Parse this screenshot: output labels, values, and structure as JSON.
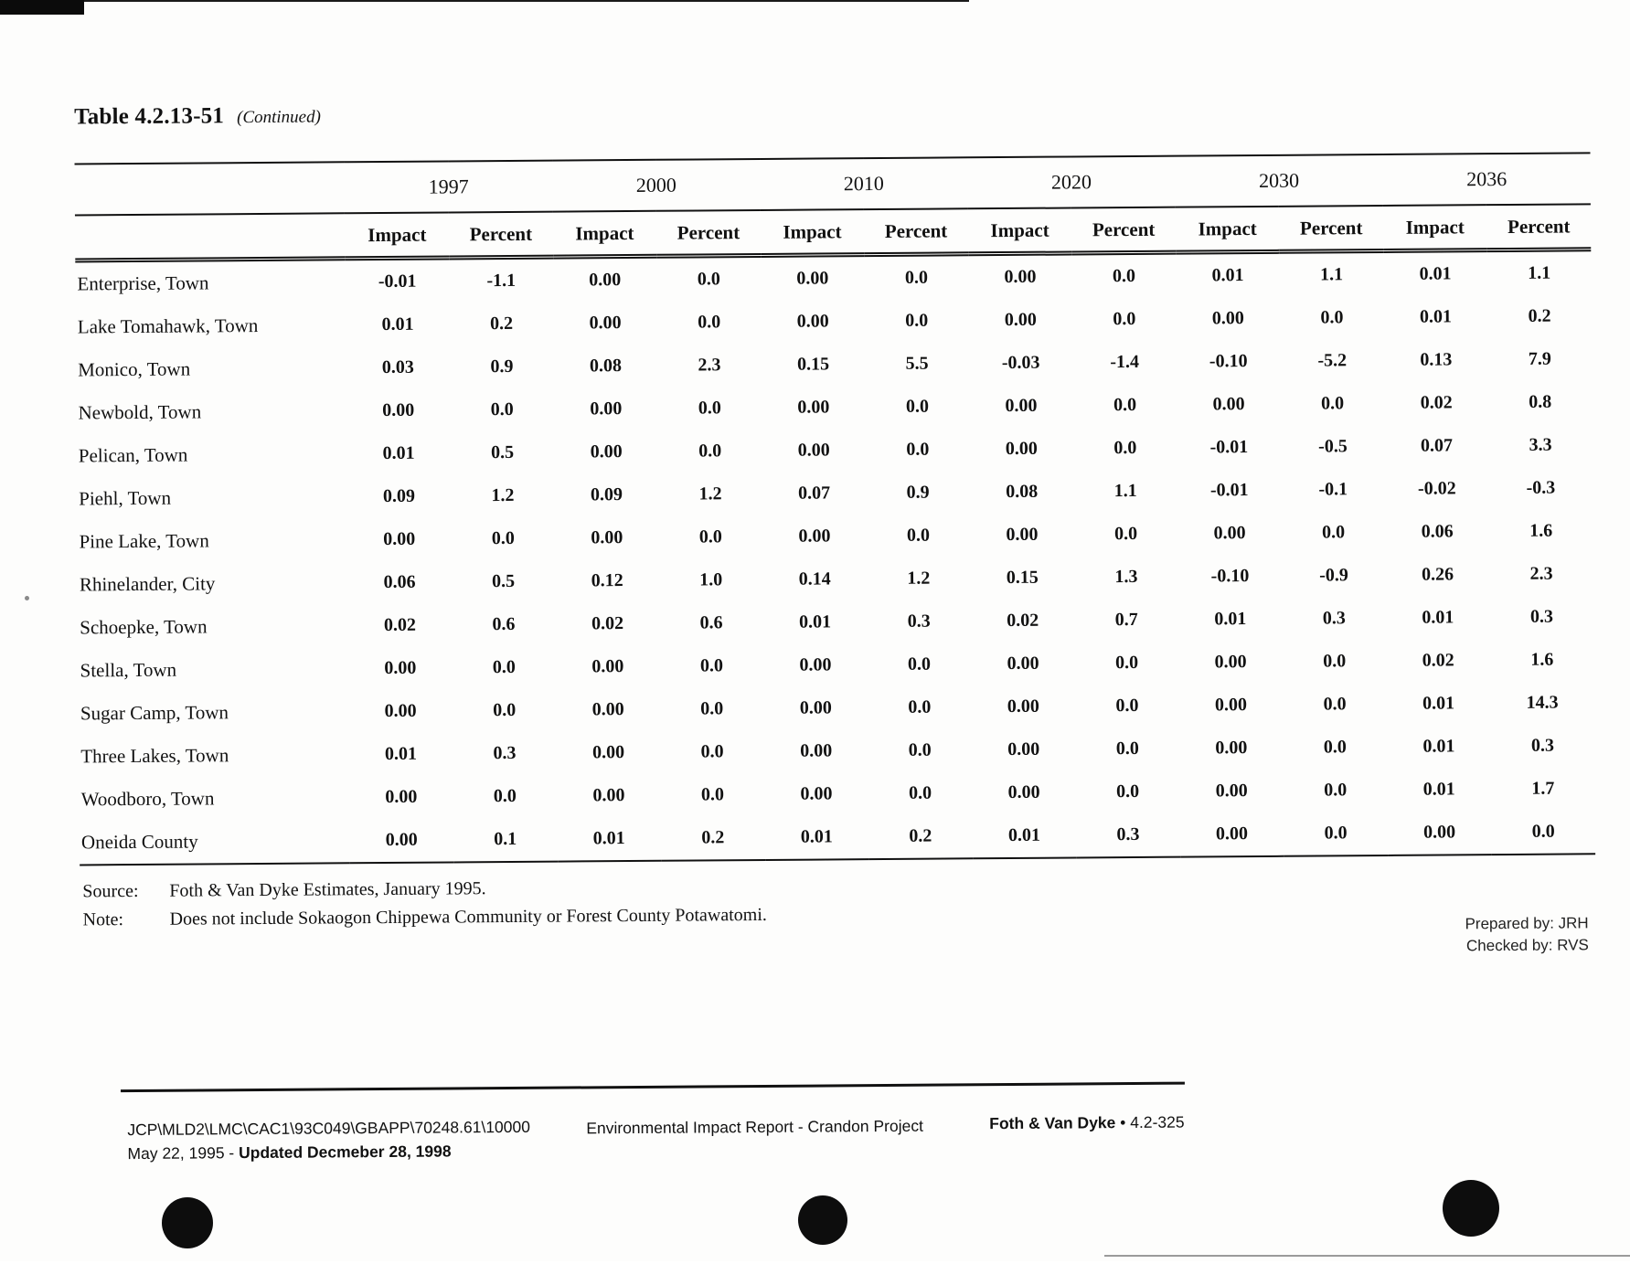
{
  "page": {
    "title": "Table 4.2.13-51",
    "title_suffix": "(Continued)"
  },
  "table": {
    "year_groups": [
      "1997",
      "2000",
      "2010",
      "2020",
      "2030",
      "2036"
    ],
    "sub_headers": [
      "Impact",
      "Percent"
    ],
    "rows": [
      {
        "label": "Enterprise, Town",
        "values": [
          "-0.01",
          "-1.1",
          "0.00",
          "0.0",
          "0.00",
          "0.0",
          "0.00",
          "0.0",
          "0.01",
          "1.1",
          "0.01",
          "1.1"
        ]
      },
      {
        "label": "Lake Tomahawk, Town",
        "values": [
          "0.01",
          "0.2",
          "0.00",
          "0.0",
          "0.00",
          "0.0",
          "0.00",
          "0.0",
          "0.00",
          "0.0",
          "0.01",
          "0.2"
        ]
      },
      {
        "label": "Monico, Town",
        "values": [
          "0.03",
          "0.9",
          "0.08",
          "2.3",
          "0.15",
          "5.5",
          "-0.03",
          "-1.4",
          "-0.10",
          "-5.2",
          "0.13",
          "7.9"
        ]
      },
      {
        "label": "Newbold, Town",
        "values": [
          "0.00",
          "0.0",
          "0.00",
          "0.0",
          "0.00",
          "0.0",
          "0.00",
          "0.0",
          "0.00",
          "0.0",
          "0.02",
          "0.8"
        ]
      },
      {
        "label": "Pelican, Town",
        "values": [
          "0.01",
          "0.5",
          "0.00",
          "0.0",
          "0.00",
          "0.0",
          "0.00",
          "0.0",
          "-0.01",
          "-0.5",
          "0.07",
          "3.3"
        ]
      },
      {
        "label": "Piehl, Town",
        "values": [
          "0.09",
          "1.2",
          "0.09",
          "1.2",
          "0.07",
          "0.9",
          "0.08",
          "1.1",
          "-0.01",
          "-0.1",
          "-0.02",
          "-0.3"
        ]
      },
      {
        "label": "Pine Lake, Town",
        "values": [
          "0.00",
          "0.0",
          "0.00",
          "0.0",
          "0.00",
          "0.0",
          "0.00",
          "0.0",
          "0.00",
          "0.0",
          "0.06",
          "1.6"
        ]
      },
      {
        "label": "Rhinelander, City",
        "values": [
          "0.06",
          "0.5",
          "0.12",
          "1.0",
          "0.14",
          "1.2",
          "0.15",
          "1.3",
          "-0.10",
          "-0.9",
          "0.26",
          "2.3"
        ]
      },
      {
        "label": "Schoepke, Town",
        "values": [
          "0.02",
          "0.6",
          "0.02",
          "0.6",
          "0.01",
          "0.3",
          "0.02",
          "0.7",
          "0.01",
          "0.3",
          "0.01",
          "0.3"
        ]
      },
      {
        "label": "Stella, Town",
        "values": [
          "0.00",
          "0.0",
          "0.00",
          "0.0",
          "0.00",
          "0.0",
          "0.00",
          "0.0",
          "0.00",
          "0.0",
          "0.02",
          "1.6"
        ]
      },
      {
        "label": "Sugar Camp, Town",
        "values": [
          "0.00",
          "0.0",
          "0.00",
          "0.0",
          "0.00",
          "0.0",
          "0.00",
          "0.0",
          "0.00",
          "0.0",
          "0.01",
          "14.3"
        ]
      },
      {
        "label": "Three Lakes, Town",
        "values": [
          "0.01",
          "0.3",
          "0.00",
          "0.0",
          "0.00",
          "0.0",
          "0.00",
          "0.0",
          "0.00",
          "0.0",
          "0.01",
          "0.3"
        ]
      },
      {
        "label": "Woodboro, Town",
        "values": [
          "0.00",
          "0.0",
          "0.00",
          "0.0",
          "0.00",
          "0.0",
          "0.00",
          "0.0",
          "0.00",
          "0.0",
          "0.01",
          "1.7"
        ]
      },
      {
        "label": "Oneida County",
        "values": [
          "0.00",
          "0.1",
          "0.01",
          "0.2",
          "0.01",
          "0.2",
          "0.01",
          "0.3",
          "0.00",
          "0.0",
          "0.00",
          "0.0"
        ]
      }
    ]
  },
  "notes": {
    "source_label": "Source:",
    "source_text": "Foth & Van Dyke Estimates, January 1995.",
    "note_label": "Note:",
    "note_text": "Does not include Sokaogon Chippewa Community or Forest County Potawatomi.",
    "prepared_by": "Prepared by: JRH",
    "checked_by": "Checked by: RVS"
  },
  "footer": {
    "file_path": "JCP\\MLD2\\LMC\\CAC1\\93C049\\GBAPP\\70248.61\\10000",
    "date_normal": "May 22, 1995 - ",
    "date_bold": "Updated Decmeber 28, 1998",
    "center_text": "Environmental Impact Report - Crandon Project",
    "right_company": "Foth & Van Dyke",
    "right_page": "• 4.2-325"
  }
}
